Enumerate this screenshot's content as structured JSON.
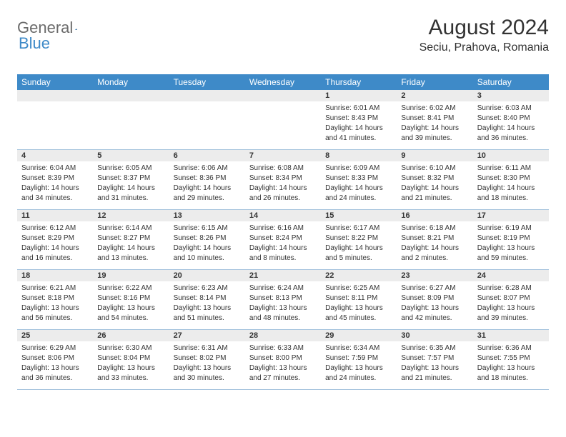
{
  "brand": {
    "word1": "General",
    "word2": "Blue"
  },
  "title": "August 2024",
  "location": "Seciu, Prahova, Romania",
  "weekday_header_bg": "#3e8ac8",
  "weekday_header_fg": "#ffffff",
  "band_bg": "#ececec",
  "border_color": "#a8c5de",
  "text_color": "#333333",
  "weekdays": [
    "Sunday",
    "Monday",
    "Tuesday",
    "Wednesday",
    "Thursday",
    "Friday",
    "Saturday"
  ],
  "weeks": [
    [
      {
        "n": "",
        "sr": "",
        "ss": "",
        "dl1": "",
        "dl2": ""
      },
      {
        "n": "",
        "sr": "",
        "ss": "",
        "dl1": "",
        "dl2": ""
      },
      {
        "n": "",
        "sr": "",
        "ss": "",
        "dl1": "",
        "dl2": ""
      },
      {
        "n": "",
        "sr": "",
        "ss": "",
        "dl1": "",
        "dl2": ""
      },
      {
        "n": "1",
        "sr": "Sunrise: 6:01 AM",
        "ss": "Sunset: 8:43 PM",
        "dl1": "Daylight: 14 hours",
        "dl2": "and 41 minutes."
      },
      {
        "n": "2",
        "sr": "Sunrise: 6:02 AM",
        "ss": "Sunset: 8:41 PM",
        "dl1": "Daylight: 14 hours",
        "dl2": "and 39 minutes."
      },
      {
        "n": "3",
        "sr": "Sunrise: 6:03 AM",
        "ss": "Sunset: 8:40 PM",
        "dl1": "Daylight: 14 hours",
        "dl2": "and 36 minutes."
      }
    ],
    [
      {
        "n": "4",
        "sr": "Sunrise: 6:04 AM",
        "ss": "Sunset: 8:39 PM",
        "dl1": "Daylight: 14 hours",
        "dl2": "and 34 minutes."
      },
      {
        "n": "5",
        "sr": "Sunrise: 6:05 AM",
        "ss": "Sunset: 8:37 PM",
        "dl1": "Daylight: 14 hours",
        "dl2": "and 31 minutes."
      },
      {
        "n": "6",
        "sr": "Sunrise: 6:06 AM",
        "ss": "Sunset: 8:36 PM",
        "dl1": "Daylight: 14 hours",
        "dl2": "and 29 minutes."
      },
      {
        "n": "7",
        "sr": "Sunrise: 6:08 AM",
        "ss": "Sunset: 8:34 PM",
        "dl1": "Daylight: 14 hours",
        "dl2": "and 26 minutes."
      },
      {
        "n": "8",
        "sr": "Sunrise: 6:09 AM",
        "ss": "Sunset: 8:33 PM",
        "dl1": "Daylight: 14 hours",
        "dl2": "and 24 minutes."
      },
      {
        "n": "9",
        "sr": "Sunrise: 6:10 AM",
        "ss": "Sunset: 8:32 PM",
        "dl1": "Daylight: 14 hours",
        "dl2": "and 21 minutes."
      },
      {
        "n": "10",
        "sr": "Sunrise: 6:11 AM",
        "ss": "Sunset: 8:30 PM",
        "dl1": "Daylight: 14 hours",
        "dl2": "and 18 minutes."
      }
    ],
    [
      {
        "n": "11",
        "sr": "Sunrise: 6:12 AM",
        "ss": "Sunset: 8:29 PM",
        "dl1": "Daylight: 14 hours",
        "dl2": "and 16 minutes."
      },
      {
        "n": "12",
        "sr": "Sunrise: 6:14 AM",
        "ss": "Sunset: 8:27 PM",
        "dl1": "Daylight: 14 hours",
        "dl2": "and 13 minutes."
      },
      {
        "n": "13",
        "sr": "Sunrise: 6:15 AM",
        "ss": "Sunset: 8:26 PM",
        "dl1": "Daylight: 14 hours",
        "dl2": "and 10 minutes."
      },
      {
        "n": "14",
        "sr": "Sunrise: 6:16 AM",
        "ss": "Sunset: 8:24 PM",
        "dl1": "Daylight: 14 hours",
        "dl2": "and 8 minutes."
      },
      {
        "n": "15",
        "sr": "Sunrise: 6:17 AM",
        "ss": "Sunset: 8:22 PM",
        "dl1": "Daylight: 14 hours",
        "dl2": "and 5 minutes."
      },
      {
        "n": "16",
        "sr": "Sunrise: 6:18 AM",
        "ss": "Sunset: 8:21 PM",
        "dl1": "Daylight: 14 hours",
        "dl2": "and 2 minutes."
      },
      {
        "n": "17",
        "sr": "Sunrise: 6:19 AM",
        "ss": "Sunset: 8:19 PM",
        "dl1": "Daylight: 13 hours",
        "dl2": "and 59 minutes."
      }
    ],
    [
      {
        "n": "18",
        "sr": "Sunrise: 6:21 AM",
        "ss": "Sunset: 8:18 PM",
        "dl1": "Daylight: 13 hours",
        "dl2": "and 56 minutes."
      },
      {
        "n": "19",
        "sr": "Sunrise: 6:22 AM",
        "ss": "Sunset: 8:16 PM",
        "dl1": "Daylight: 13 hours",
        "dl2": "and 54 minutes."
      },
      {
        "n": "20",
        "sr": "Sunrise: 6:23 AM",
        "ss": "Sunset: 8:14 PM",
        "dl1": "Daylight: 13 hours",
        "dl2": "and 51 minutes."
      },
      {
        "n": "21",
        "sr": "Sunrise: 6:24 AM",
        "ss": "Sunset: 8:13 PM",
        "dl1": "Daylight: 13 hours",
        "dl2": "and 48 minutes."
      },
      {
        "n": "22",
        "sr": "Sunrise: 6:25 AM",
        "ss": "Sunset: 8:11 PM",
        "dl1": "Daylight: 13 hours",
        "dl2": "and 45 minutes."
      },
      {
        "n": "23",
        "sr": "Sunrise: 6:27 AM",
        "ss": "Sunset: 8:09 PM",
        "dl1": "Daylight: 13 hours",
        "dl2": "and 42 minutes."
      },
      {
        "n": "24",
        "sr": "Sunrise: 6:28 AM",
        "ss": "Sunset: 8:07 PM",
        "dl1": "Daylight: 13 hours",
        "dl2": "and 39 minutes."
      }
    ],
    [
      {
        "n": "25",
        "sr": "Sunrise: 6:29 AM",
        "ss": "Sunset: 8:06 PM",
        "dl1": "Daylight: 13 hours",
        "dl2": "and 36 minutes."
      },
      {
        "n": "26",
        "sr": "Sunrise: 6:30 AM",
        "ss": "Sunset: 8:04 PM",
        "dl1": "Daylight: 13 hours",
        "dl2": "and 33 minutes."
      },
      {
        "n": "27",
        "sr": "Sunrise: 6:31 AM",
        "ss": "Sunset: 8:02 PM",
        "dl1": "Daylight: 13 hours",
        "dl2": "and 30 minutes."
      },
      {
        "n": "28",
        "sr": "Sunrise: 6:33 AM",
        "ss": "Sunset: 8:00 PM",
        "dl1": "Daylight: 13 hours",
        "dl2": "and 27 minutes."
      },
      {
        "n": "29",
        "sr": "Sunrise: 6:34 AM",
        "ss": "Sunset: 7:59 PM",
        "dl1": "Daylight: 13 hours",
        "dl2": "and 24 minutes."
      },
      {
        "n": "30",
        "sr": "Sunrise: 6:35 AM",
        "ss": "Sunset: 7:57 PM",
        "dl1": "Daylight: 13 hours",
        "dl2": "and 21 minutes."
      },
      {
        "n": "31",
        "sr": "Sunrise: 6:36 AM",
        "ss": "Sunset: 7:55 PM",
        "dl1": "Daylight: 13 hours",
        "dl2": "and 18 minutes."
      }
    ]
  ]
}
